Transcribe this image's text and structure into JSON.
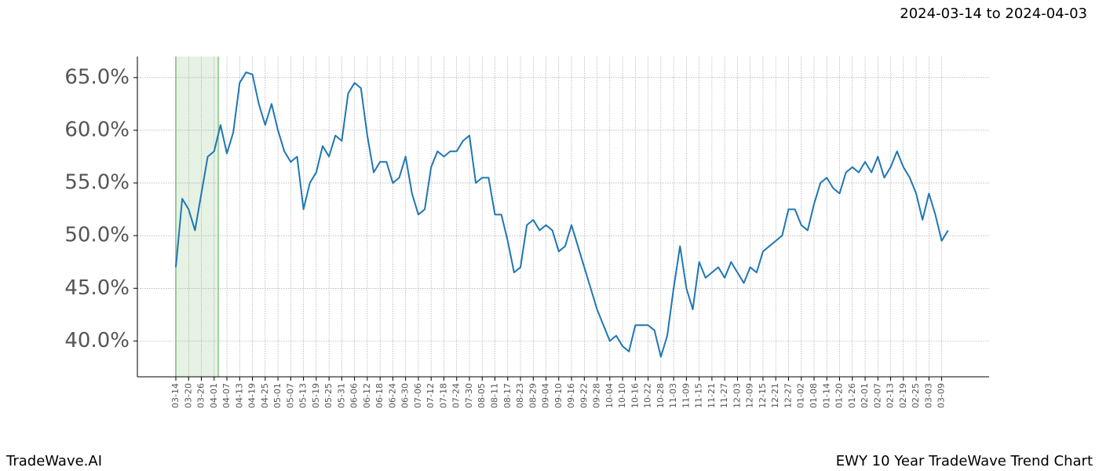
{
  "chart_data": {
    "type": "line",
    "title": "EWY 10 Year TradeWave Trend Chart",
    "subtitle": "2024-03-14 to 2024-04-03",
    "source": "TradeWave.AI",
    "categories": [
      "03-14",
      null,
      "03-20",
      null,
      "03-26",
      null,
      "04-01",
      null,
      "04-07",
      null,
      "04-13",
      null,
      "04-19",
      null,
      "04-25",
      null,
      "05-01",
      null,
      "05-07",
      null,
      "05-13",
      null,
      "05-19",
      null,
      "05-25",
      null,
      "05-31",
      null,
      "06-06",
      null,
      "06-12",
      null,
      "06-18",
      null,
      "06-24",
      null,
      "06-30",
      null,
      "07-06",
      null,
      "07-12",
      null,
      "07-18",
      null,
      "07-24",
      null,
      "07-30",
      null,
      "08-05",
      null,
      "08-11",
      null,
      "08-17",
      null,
      "08-23",
      null,
      "08-29",
      null,
      "09-04",
      null,
      "09-10",
      null,
      "09-16",
      null,
      "09-22",
      null,
      "09-28",
      null,
      "10-04",
      null,
      "10-10",
      null,
      "10-16",
      null,
      "10-22",
      null,
      "10-28",
      null,
      "11-03",
      null,
      "11-09",
      null,
      "11-15",
      null,
      "11-21",
      null,
      "11-27",
      null,
      "12-03",
      null,
      "12-09",
      null,
      "12-15",
      null,
      "12-21",
      null,
      "12-27",
      null,
      "01-02",
      null,
      "01-08",
      null,
      "01-14",
      null,
      "01-20",
      null,
      "01-26",
      null,
      "02-01",
      null,
      "02-07",
      null,
      "02-13",
      null,
      "02-19",
      null,
      "02-25",
      null,
      "03-03",
      null,
      "03-09",
      null
    ],
    "series": [
      {
        "name": "EWY",
        "color": "#1f77b4",
        "values": [
          47.0,
          53.5,
          52.5,
          50.5,
          54.0,
          57.5,
          58.0,
          60.5,
          57.8,
          59.8,
          64.5,
          65.5,
          65.3,
          62.5,
          60.5,
          62.5,
          60.0,
          58.0,
          57.0,
          57.5,
          52.5,
          55.0,
          56.0,
          58.5,
          57.5,
          59.5,
          59.0,
          63.5,
          64.5,
          64.0,
          59.5,
          56.0,
          57.0,
          57.0,
          55.0,
          55.5,
          57.5,
          54.0,
          52.0,
          52.5,
          56.5,
          58.0,
          57.5,
          58.0,
          58.0,
          59.0,
          59.5,
          55.0,
          55.5,
          55.5,
          52.0,
          52.0,
          49.5,
          46.5,
          47.0,
          51.0,
          51.5,
          50.5,
          51.0,
          50.5,
          48.5,
          49.0,
          51.0,
          49.0,
          47.0,
          45.0,
          43.0,
          41.5,
          40.0,
          40.5,
          39.5,
          39.0,
          41.5,
          41.5,
          41.5,
          41.0,
          38.5,
          40.5,
          45.0,
          49.0,
          45.0,
          43.0,
          47.5,
          46.0,
          46.5,
          47.0,
          46.0,
          47.5,
          46.5,
          45.5,
          47.0,
          46.5,
          48.5,
          49.0,
          49.5,
          50.0,
          52.5,
          52.5,
          51.0,
          50.5,
          53.0,
          55.0,
          55.5,
          54.5,
          54.0,
          56.0,
          56.5,
          56.0,
          57.0,
          56.0,
          57.5,
          55.5,
          56.5,
          58.0,
          56.5,
          55.5,
          54.0,
          51.5,
          54.0,
          52.0,
          49.5,
          50.5
        ]
      }
    ],
    "ylim": [
      36.6,
      67.0
    ],
    "yticks": [
      {
        "value": 40,
        "label": "40.0%"
      },
      {
        "value": 45,
        "label": "45.0%"
      },
      {
        "value": 50,
        "label": "50.0%"
      },
      {
        "value": 55,
        "label": "55.0%"
      },
      {
        "value": 60,
        "label": "60.0%"
      },
      {
        "value": 65,
        "label": "65.0%"
      }
    ],
    "grid": true
  }
}
